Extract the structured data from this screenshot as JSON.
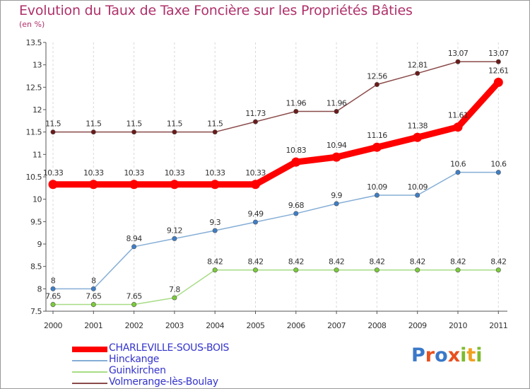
{
  "title": "Evolution du Taux de Taxe Foncière sur les Propriétés Bâties",
  "unit": "(en %)",
  "logo": {
    "text": "Proxiti",
    "colors": [
      "#3a78c8",
      "#e8501e",
      "#3a78c8",
      "#e8501e",
      "#7dbb2e",
      "#f0a020",
      "#7dbb2e"
    ]
  },
  "chart_data": {
    "type": "line",
    "title": "Evolution du Taux de Taxe Foncière sur les Propriétés Bâties",
    "ylabel": "(en %)",
    "x": [
      "2000",
      "2001",
      "2002",
      "2003",
      "2004",
      "2005",
      "2006",
      "2007",
      "2008",
      "2009",
      "2010",
      "2011"
    ],
    "ylim": [
      7.5,
      13.5
    ],
    "yticks": [
      "7.5",
      "8",
      "8.5",
      "9",
      "9.5",
      "10",
      "10.5",
      "11",
      "11.5",
      "12",
      "12.5",
      "13",
      "13.5"
    ],
    "grid": "vertical dashed",
    "legend_position": "bottom-left",
    "series": [
      {
        "name": "CHARLEVILLE-SOUS-BOIS",
        "values": [
          10.33,
          10.33,
          10.33,
          10.33,
          10.33,
          10.33,
          10.83,
          10.94,
          11.16,
          11.38,
          11.61,
          12.61
        ],
        "labels": [
          "10.33",
          "10.33",
          "10.33",
          "10.33",
          "10.33",
          "10.33",
          "10.83",
          "10.94",
          "11.16",
          "11.38",
          "11.61",
          "12.61"
        ],
        "color": "#ff0000",
        "legend_text_color": "#3333cc",
        "marker_color": "#ff0000",
        "emphasis": true
      },
      {
        "name": "Hinckange",
        "values": [
          8,
          8,
          8.94,
          9.12,
          9.3,
          9.49,
          9.68,
          9.9,
          10.09,
          10.09,
          10.6,
          10.6
        ],
        "labels": [
          "8",
          "8",
          "8.94",
          "9.12",
          "9.3",
          "9.49",
          "9.68",
          "9.9",
          "10.09",
          "10.09",
          "10.6",
          "10.6"
        ],
        "color": "#85aed6",
        "legend_text_color": "#3333cc",
        "marker_color": "#3f7ec6",
        "emphasis": false
      },
      {
        "name": "Guinkirchen",
        "values": [
          7.65,
          7.65,
          7.65,
          7.8,
          8.42,
          8.42,
          8.42,
          8.42,
          8.42,
          8.42,
          8.42,
          8.42
        ],
        "labels": [
          "7.65",
          "7.65",
          "7.65",
          "7.8",
          "8.42",
          "8.42",
          "8.42",
          "8.42",
          "8.42",
          "8.42",
          "8.42",
          "8.42"
        ],
        "color": "#a8dc86",
        "legend_text_color": "#3333cc",
        "marker_color": "#7ccc3a",
        "emphasis": false
      },
      {
        "name": "Volmerange-lès-Boulay",
        "values": [
          11.5,
          11.5,
          11.5,
          11.5,
          11.5,
          11.73,
          11.96,
          11.96,
          12.56,
          12.81,
          13.07,
          13.07
        ],
        "labels": [
          "11.5",
          "11.5",
          "11.5",
          "11.5",
          "11.5",
          "11.73",
          "11.96",
          "11.96",
          "12.56",
          "12.81",
          "13.07",
          "13.07"
        ],
        "color": "#8b4a4a",
        "legend_text_color": "#3333cc",
        "marker_color": "#6b1a1a",
        "emphasis": false
      }
    ]
  }
}
